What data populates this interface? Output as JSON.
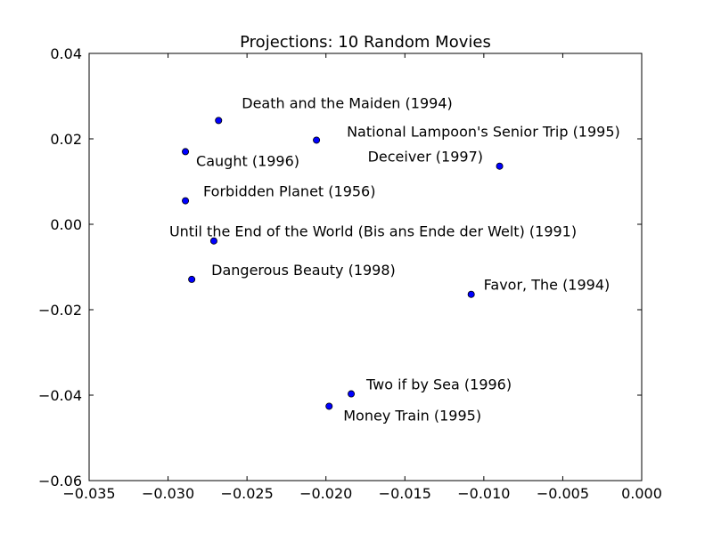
{
  "chart_data": {
    "type": "scatter",
    "title": "Projections: 10 Random Movies",
    "xlabel": "",
    "ylabel": "",
    "xlim": [
      -0.035,
      0.0
    ],
    "ylim": [
      -0.06,
      0.04
    ],
    "grid": false,
    "x_ticks": [
      -0.035,
      -0.03,
      -0.025,
      -0.02,
      -0.015,
      -0.01,
      -0.005,
      0.0
    ],
    "x_tick_labels": [
      "−0.035",
      "−0.030",
      "−0.025",
      "−0.020",
      "−0.015",
      "−0.010",
      "−0.005",
      "0.000"
    ],
    "y_ticks": [
      -0.06,
      -0.04,
      -0.02,
      0.0,
      0.02,
      0.04
    ],
    "y_tick_labels": [
      "−0.06",
      "−0.04",
      "−0.02",
      "0.00",
      "0.02",
      "0.04"
    ],
    "points": [
      {
        "label": "Death and the Maiden (1994)",
        "x": -0.0268,
        "y": 0.0243
      },
      {
        "label": "National Lampoon's Senior Trip (1995)",
        "x": -0.0206,
        "y": 0.0197
      },
      {
        "label": "Caught (1996)",
        "x": -0.0289,
        "y": 0.017
      },
      {
        "label": "Deceiver (1997)",
        "x": -0.009,
        "y": 0.0136
      },
      {
        "label": "Forbidden Planet (1956)",
        "x": -0.0289,
        "y": 0.0055
      },
      {
        "label": "Until the End of the World (Bis ans Ende der Welt) (1991)",
        "x": -0.0271,
        "y": -0.0039
      },
      {
        "label": "Dangerous Beauty (1998)",
        "x": -0.0285,
        "y": -0.0129
      },
      {
        "label": "Favor, The (1994)",
        "x": -0.0108,
        "y": -0.0164
      },
      {
        "label": "Two if by Sea (1996)",
        "x": -0.0184,
        "y": -0.0397
      },
      {
        "label": "Money Train (1995)",
        "x": -0.0198,
        "y": -0.0426
      }
    ],
    "marker_color": "#0000ff"
  }
}
